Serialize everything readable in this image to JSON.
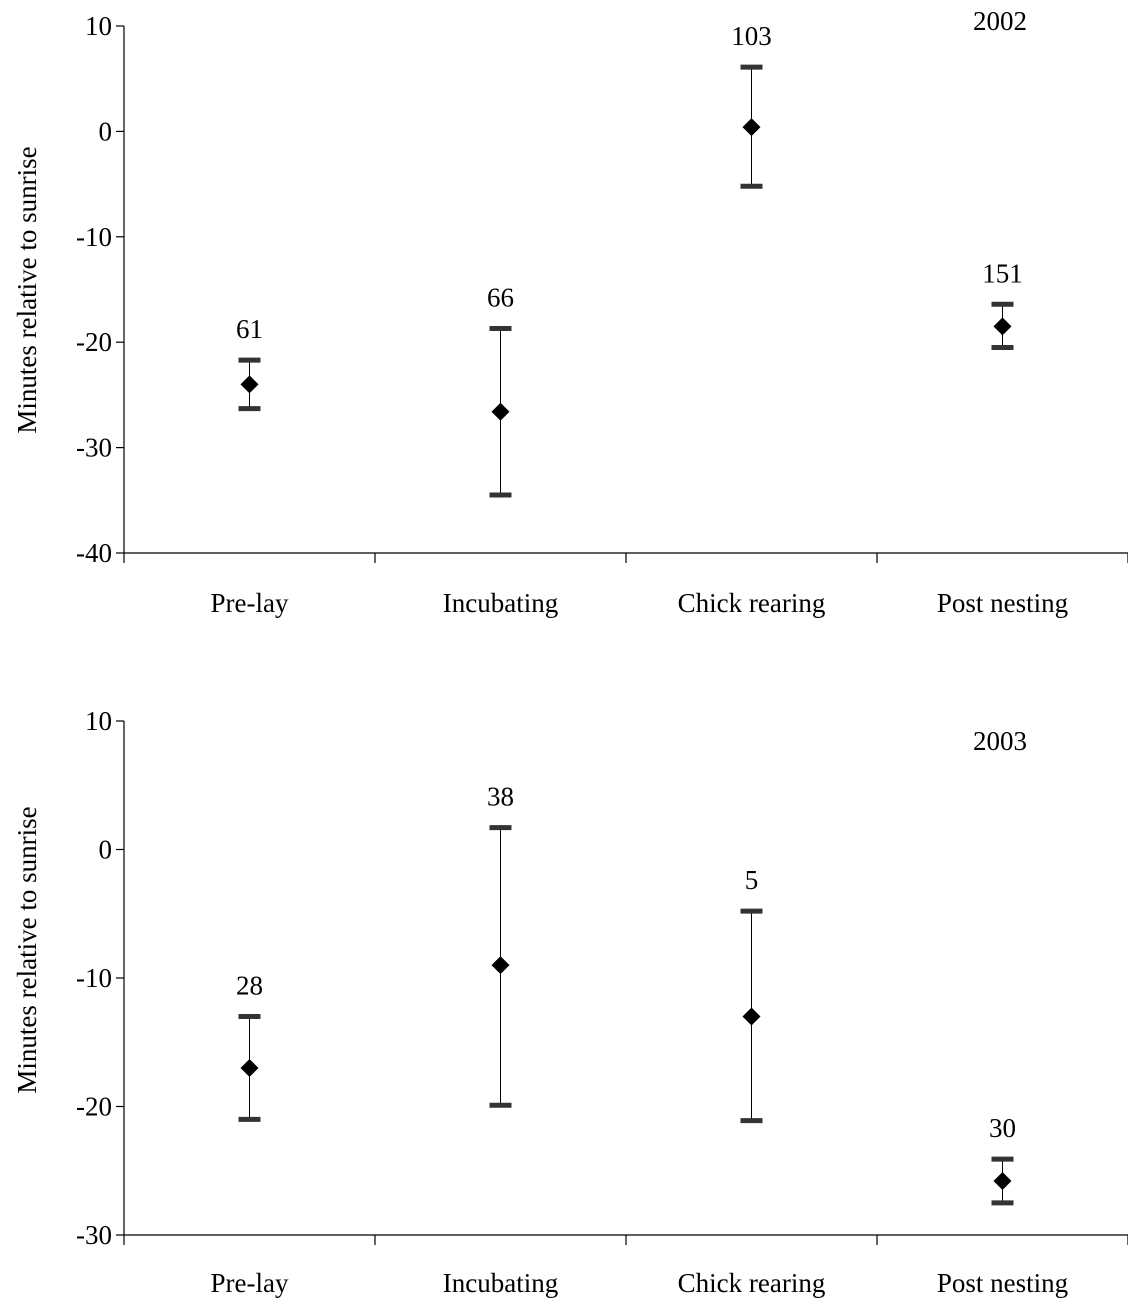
{
  "chart_data": [
    {
      "type": "scatter",
      "year_label": "2002",
      "ylabel": "Minutes relative to sunrise",
      "xlabel": "",
      "categories": [
        "Pre-lay",
        "Incubating",
        "Chick rearing",
        "Post nesting"
      ],
      "ylim": [
        -40,
        10
      ],
      "yticks": [
        10,
        0,
        -10,
        -20,
        -30,
        -40
      ],
      "grid": false,
      "points": [
        {
          "category": "Pre-lay",
          "mean": -24,
          "upper": -21.7,
          "lower": -26.3,
          "n": "61"
        },
        {
          "category": "Incubating",
          "mean": -26.6,
          "upper": -18.7,
          "lower": -34.5,
          "n": "66"
        },
        {
          "category": "Chick rearing",
          "mean": 0.4,
          "upper": 6.1,
          "lower": -5.2,
          "n": "103"
        },
        {
          "category": "Post nesting",
          "mean": -18.5,
          "upper": -16.4,
          "lower": -20.5,
          "n": "151"
        }
      ]
    },
    {
      "type": "scatter",
      "year_label": "2003",
      "ylabel": "Minutes relative to sunrise",
      "xlabel": "",
      "categories": [
        "Pre-lay",
        "Incubating",
        "Chick rearing",
        "Post nesting"
      ],
      "ylim": [
        -30,
        10
      ],
      "yticks": [
        10,
        0,
        -10,
        -20,
        -30
      ],
      "grid": false,
      "points": [
        {
          "category": "Pre-lay",
          "mean": -17,
          "upper": -13,
          "lower": -21,
          "n": "28"
        },
        {
          "category": "Incubating",
          "mean": -9,
          "upper": 1.7,
          "lower": -19.9,
          "n": "38"
        },
        {
          "category": "Chick rearing",
          "mean": -13,
          "upper": -4.8,
          "lower": -21.1,
          "n": "5"
        },
        {
          "category": "Post nesting",
          "mean": -25.8,
          "upper": -24.1,
          "lower": -27.5,
          "n": "30"
        }
      ]
    }
  ]
}
